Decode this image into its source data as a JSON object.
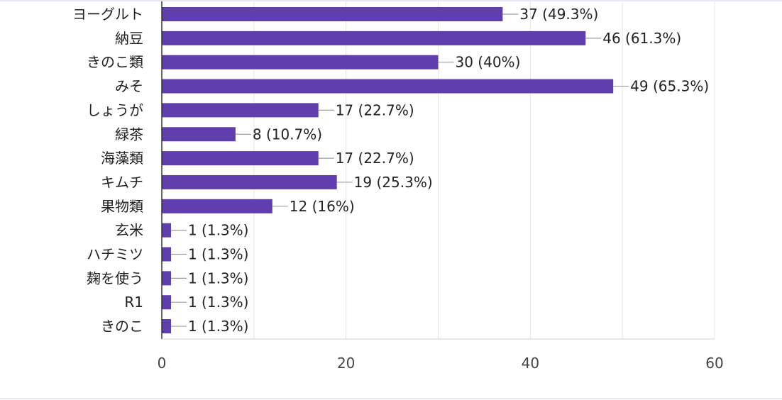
{
  "chart_data": {
    "type": "bar",
    "orientation": "horizontal",
    "categories": [
      "ヨーグルト",
      "納豆",
      "きのこ類",
      "みそ",
      "しょうが",
      "緑茶",
      "海藻類",
      "キムチ",
      "果物類",
      "玄米",
      "ハチミツ",
      "麹を使う",
      "R1",
      "きのこ"
    ],
    "values": [
      37,
      46,
      30,
      49,
      17,
      8,
      17,
      19,
      12,
      1,
      1,
      1,
      1,
      1
    ],
    "data_labels": [
      "37 (49.3%)",
      "46 (61.3%)",
      "30 (40%)",
      "49 (65.3%)",
      "17 (22.7%)",
      "8 (10.7%)",
      "17 (22.7%)",
      "19 (25.3%)",
      "12 (16%)",
      "1 (1.3%)",
      "1 (1.3%)",
      "1 (1.3%)",
      "1 (1.3%)",
      "1 (1.3%)"
    ],
    "xlim": [
      0,
      60
    ],
    "xticks": [
      0,
      20,
      40,
      60
    ],
    "xtick_labels": [
      "0",
      "20",
      "40",
      "60"
    ],
    "grid": true,
    "bar_color": "#5e3fad"
  }
}
